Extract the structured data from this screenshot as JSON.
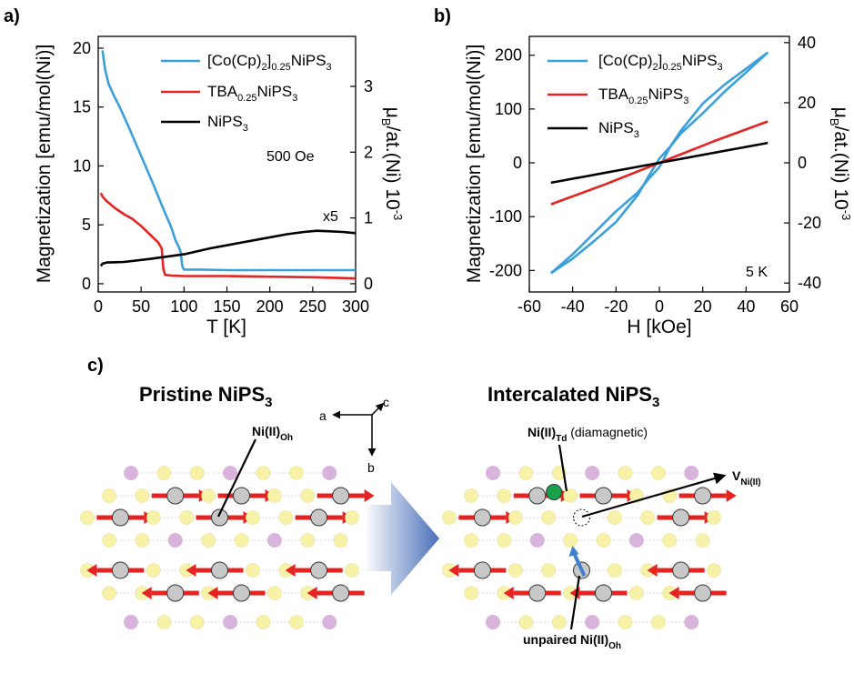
{
  "chart_data": [
    {
      "panel": "a)",
      "type": "line",
      "xlabel": "T [K]",
      "ylabel": "Magnetization [emu/mol(Ni)]",
      "ylabel_right_main": "μ",
      "ylabel_right_sub": "B",
      "ylabel_right_mid": "/at.(Ni) 10",
      "ylabel_right_sup": "-3",
      "xlim": [
        0,
        300
      ],
      "ylim": [
        -0.7,
        21
      ],
      "xticks": [
        "0",
        "50",
        "100",
        "150",
        "200",
        "250",
        "300"
      ],
      "yticks": [
        "0",
        "5",
        "10",
        "15",
        "20"
      ],
      "yticks_right": [
        "0",
        "1",
        "2",
        "3"
      ],
      "annotation_field": "500 Oe",
      "annotation_scale": "x5",
      "series": [
        {
          "name_main": "[Co(Cp)",
          "name_sub": "2",
          "name_mid": "]",
          "name_sub2": "0.25",
          "name_tail": "NiPS",
          "name_sub3": "3",
          "color": "#3aa0dc",
          "x": [
            5,
            8,
            12,
            18,
            25,
            35,
            45,
            55,
            65,
            75,
            85,
            90,
            94,
            96,
            98,
            100,
            120,
            150,
            200,
            250,
            300
          ],
          "y": [
            19.8,
            18.2,
            17.0,
            16.0,
            15.0,
            13.4,
            11.7,
            10.0,
            8.3,
            6.5,
            4.8,
            3.7,
            3.1,
            2.7,
            1.5,
            1.2,
            1.2,
            1.15,
            1.15,
            1.15,
            1.15
          ]
        },
        {
          "name_main": "TBA",
          "name_sub": "0.25",
          "name_tail": "NiPS",
          "name_sub3": "3",
          "color": "#e52320",
          "x": [
            3,
            5,
            10,
            20,
            30,
            40,
            50,
            60,
            70,
            74,
            76,
            78,
            85,
            100,
            150,
            200,
            250,
            300
          ],
          "y": [
            7.7,
            7.4,
            7.0,
            6.4,
            5.9,
            5.5,
            4.9,
            4.2,
            3.5,
            3.0,
            1.2,
            0.75,
            0.7,
            0.65,
            0.65,
            0.6,
            0.55,
            0.45
          ]
        },
        {
          "name_main": "NiPS",
          "name_sub": "3",
          "color": "#000000",
          "x": [
            3,
            5,
            10,
            30,
            60,
            100,
            130,
            160,
            190,
            220,
            240,
            255,
            270,
            285,
            300
          ],
          "y": [
            1.5,
            1.7,
            1.8,
            1.85,
            2.1,
            2.5,
            3.0,
            3.4,
            3.8,
            4.2,
            4.4,
            4.5,
            4.45,
            4.4,
            4.3
          ]
        }
      ]
    },
    {
      "panel": "b)",
      "type": "line",
      "xlabel": "H [kOe]",
      "ylabel": "Magnetization [emu/mol(Ni)]",
      "ylabel_right_main": "μ",
      "ylabel_right_sub": "B",
      "ylabel_right_mid": "/at.(Ni) 10",
      "ylabel_right_sup": "-3",
      "xlim": [
        -60,
        60
      ],
      "ylim": [
        -240,
        235
      ],
      "xticks": [
        "-60",
        "-40",
        "-20",
        "0",
        "20",
        "40",
        "60"
      ],
      "yticks": [
        "-200",
        "-100",
        "0",
        "100",
        "200"
      ],
      "yticks_right": [
        "-40",
        "-20",
        "0",
        "20",
        "40"
      ],
      "annotation_temp": "5 K",
      "series": [
        {
          "name_main": "[Co(Cp)",
          "name_sub": "2",
          "name_mid": "]",
          "name_sub2": "0.25",
          "name_tail": "NiPS",
          "name_sub3": "3",
          "color": "#3aa0dc",
          "x": [
            -50,
            -40,
            -30,
            -20,
            -10,
            -5,
            0,
            5,
            10,
            20,
            30,
            40,
            50
          ],
          "y": [
            -205,
            -170,
            -130,
            -90,
            -55,
            -30,
            -8,
            30,
            60,
            110,
            145,
            175,
            205
          ],
          "x2": [
            50,
            40,
            30,
            20,
            10,
            5,
            0,
            -5,
            -10,
            -20,
            -30,
            -40,
            -50
          ],
          "y2": [
            205,
            168,
            132,
            92,
            55,
            30,
            8,
            -25,
            -60,
            -110,
            -145,
            -178,
            -205
          ]
        },
        {
          "name_main": "TBA",
          "name_sub": "0.25",
          "name_tail": "NiPS",
          "name_sub3": "3",
          "color": "#e52320",
          "x": [
            -50,
            -25,
            0,
            25,
            50
          ],
          "y": [
            -77,
            -40,
            0,
            40,
            77
          ]
        },
        {
          "name_main": "NiPS",
          "name_sub": "3",
          "color": "#000000",
          "x": [
            -50,
            0,
            50
          ],
          "y": [
            -37,
            0,
            37
          ]
        }
      ]
    }
  ],
  "panel_c": {
    "label": "c)",
    "left_title_main": "Pristine NiPS",
    "left_title_sub": "3",
    "right_title_main": "Intercalated NiPS",
    "right_title_sub": "3",
    "axis_a": "a",
    "axis_b": "b",
    "axis_c": "c",
    "ni_oh_main": "Ni(II)",
    "ni_oh_sub": "Oh",
    "ni_td_main": "Ni(II)",
    "ni_td_sub": "Td",
    "ni_td_note": " (diamagnetic)",
    "vac_main": "V",
    "vac_sub": "Ni(II)",
    "unpaired_main": "unpaired Ni(II)",
    "unpaired_sub": "Oh",
    "colors": {
      "sulfur": "#f8f2a8",
      "phosphorus": "#d8b4dc",
      "nickel": "#c8c8c8",
      "spin": "#e52320",
      "td": "#1aa04a",
      "arrow_big": "#5b7fc0",
      "unpaired_arrow": "#3f7fd0"
    }
  }
}
